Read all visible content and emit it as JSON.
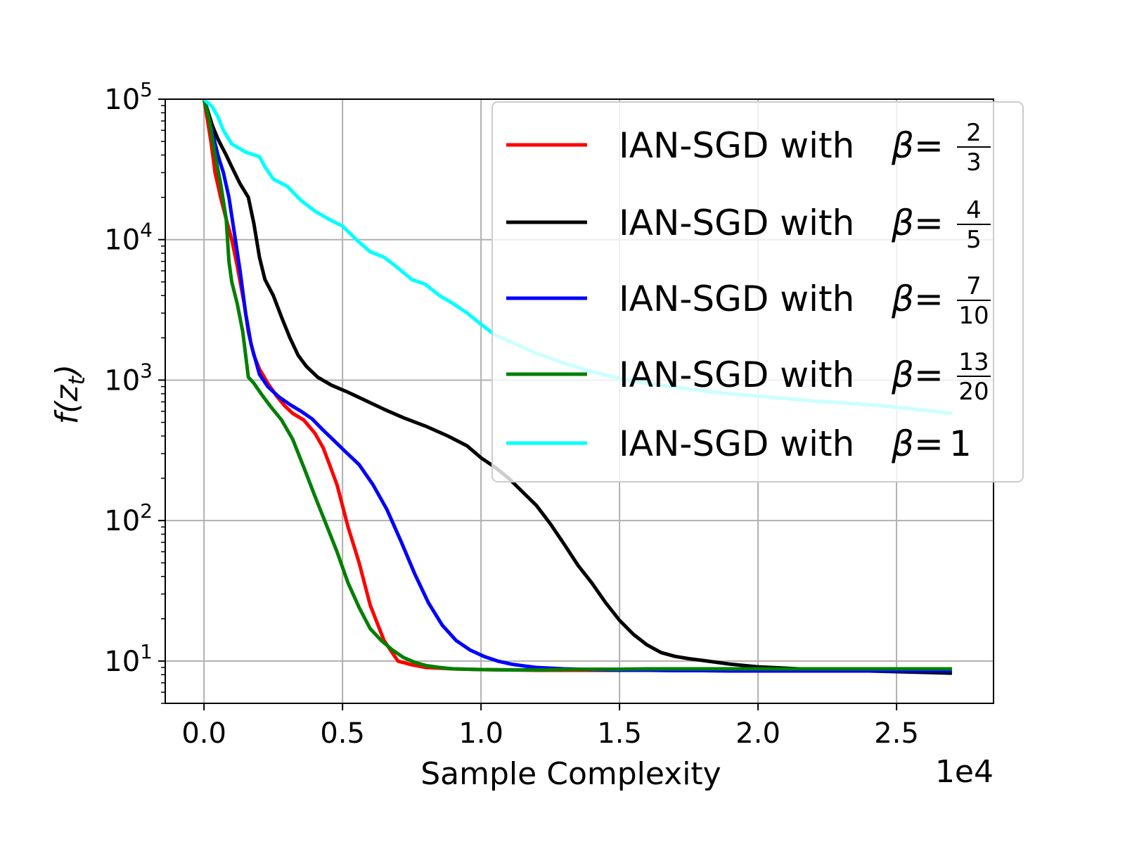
{
  "chart_data": {
    "type": "line",
    "title": "",
    "xlabel": "Sample Complexity",
    "x_offset_label": "1e4",
    "ylabel": "f(z_t)",
    "yscale": "log",
    "xlim": [
      -1400,
      28500
    ],
    "ylim": [
      5,
      100000
    ],
    "grid": true,
    "legend_location": "upper right",
    "x_ticks": [
      {
        "value": 0,
        "label": "0.0"
      },
      {
        "value": 5000,
        "label": "0.5"
      },
      {
        "value": 10000,
        "label": "1.0"
      },
      {
        "value": 15000,
        "label": "1.5"
      },
      {
        "value": 20000,
        "label": "2.0"
      },
      {
        "value": 25000,
        "label": "2.5"
      }
    ],
    "y_ticks": [
      {
        "value": 10,
        "base": "10",
        "exp": "1"
      },
      {
        "value": 100,
        "base": "10",
        "exp": "2"
      },
      {
        "value": 1000,
        "base": "10",
        "exp": "3"
      },
      {
        "value": 10000,
        "base": "10",
        "exp": "4"
      },
      {
        "value": 100000,
        "base": "10",
        "exp": "5"
      }
    ],
    "series": [
      {
        "name": "beta-2-3",
        "label_prefix": "IAN-SGD with",
        "beta_num": "2",
        "beta_den": "3",
        "color": "#ff0000",
        "x": [
          0,
          250,
          400,
          600,
          800,
          1000,
          1200,
          1450,
          1600,
          1800,
          2000,
          2300,
          2600,
          2900,
          3200,
          3600,
          4000,
          4300,
          4500,
          4800,
          5200,
          5600,
          6000,
          6500,
          7000,
          7500,
          8000,
          8500,
          9000,
          9500,
          10000,
          11000,
          12000,
          13000,
          14000,
          15000,
          16000,
          17000,
          18000,
          19000,
          20000,
          21000,
          22000,
          23000,
          24000,
          25000,
          26000,
          27000
        ],
        "y": [
          100000,
          50000,
          30000,
          20000,
          14000,
          10000,
          6500,
          3500,
          2200,
          1500,
          1200,
          950,
          780,
          660,
          580,
          520,
          420,
          330,
          260,
          180,
          90,
          50,
          25,
          14,
          10,
          9.4,
          9.0,
          8.9,
          8.8,
          8.75,
          8.7,
          8.65,
          8.6,
          8.6,
          8.6,
          8.6,
          8.65,
          8.7,
          8.7,
          8.7,
          8.75,
          8.75,
          8.75,
          8.75,
          8.8,
          8.8,
          8.8,
          8.8
        ]
      },
      {
        "name": "beta-4-5",
        "label_prefix": "IAN-SGD with",
        "beta_num": "4",
        "beta_den": "5",
        "color": "#000000",
        "x": [
          0,
          300,
          500,
          800,
          1000,
          1300,
          1600,
          1800,
          2000,
          2200,
          2500,
          2800,
          3100,
          3400,
          3700,
          4100,
          4600,
          5200,
          5800,
          6500,
          7200,
          8000,
          8800,
          9500,
          10000,
          10500,
          11000,
          11500,
          12000,
          12500,
          13000,
          13500,
          14000,
          14500,
          15000,
          15500,
          16000,
          16500,
          17000,
          17500,
          18000,
          18500,
          19000,
          19500,
          20000,
          21000,
          22000,
          23000,
          24000,
          25000,
          26000,
          27000
        ],
        "y": [
          100000,
          65000,
          52000,
          40000,
          33000,
          25000,
          20000,
          13000,
          7500,
          5200,
          4000,
          2800,
          2000,
          1500,
          1250,
          1050,
          920,
          820,
          720,
          620,
          540,
          470,
          400,
          340,
          280,
          240,
          200,
          160,
          128,
          95,
          68,
          48,
          36,
          26,
          19.5,
          15.5,
          13,
          11.5,
          10.8,
          10.4,
          10.1,
          9.8,
          9.5,
          9.3,
          9.1,
          8.9,
          8.7,
          8.6,
          8.5,
          8.4,
          8.3,
          8.2
        ]
      },
      {
        "name": "beta-7-10",
        "label_prefix": "IAN-SGD with",
        "beta_num": "7",
        "beta_den": "10",
        "color": "#0000ff",
        "x": [
          0,
          300,
          500,
          700,
          900,
          1100,
          1300,
          1500,
          1700,
          2000,
          2300,
          2700,
          3100,
          3500,
          3900,
          4300,
          4700,
          5100,
          5600,
          6100,
          6600,
          7100,
          7600,
          8100,
          8600,
          9100,
          9600,
          10100,
          10600,
          11100,
          11600,
          12000,
          13000,
          14000,
          15000,
          16000,
          17000,
          18000,
          19000,
          20000,
          21000,
          22000,
          23000,
          24000,
          25000,
          26000,
          27000
        ],
        "y": [
          100000,
          58000,
          40000,
          30000,
          20000,
          11000,
          6000,
          3000,
          1800,
          1100,
          900,
          760,
          670,
          600,
          530,
          440,
          370,
          310,
          250,
          180,
          120,
          72,
          42,
          26,
          18,
          14,
          12,
          10.8,
          10,
          9.5,
          9.2,
          9.0,
          8.8,
          8.7,
          8.6,
          8.6,
          8.55,
          8.55,
          8.5,
          8.5,
          8.5,
          8.5,
          8.5,
          8.5,
          8.5,
          8.5,
          8.5
        ]
      },
      {
        "name": "beta-13-20",
        "label_prefix": "IAN-SGD with",
        "beta_num": "13",
        "beta_den": "20",
        "color": "#008000",
        "x": [
          0,
          200,
          400,
          600,
          800,
          900,
          1000,
          1200,
          1400,
          1600,
          1800,
          2100,
          2400,
          2800,
          3200,
          3600,
          4000,
          4400,
          4800,
          5200,
          5600,
          6000,
          6400,
          6800,
          7200,
          7600,
          8000,
          8500,
          9000,
          9500,
          10000,
          11000,
          12000,
          13000,
          14000,
          15000,
          16000,
          17000,
          18000,
          19000,
          20000,
          21000,
          22000,
          23000,
          24000,
          25000,
          26000,
          27000
        ],
        "y": [
          100000,
          70000,
          40000,
          25000,
          14000,
          7000,
          5000,
          3500,
          2200,
          1050,
          950,
          780,
          650,
          520,
          380,
          240,
          150,
          95,
          60,
          36,
          24,
          17,
          14,
          12,
          10.6,
          9.8,
          9.3,
          9.0,
          8.8,
          8.75,
          8.7,
          8.65,
          8.65,
          8.7,
          8.75,
          8.75,
          8.8,
          8.8,
          8.8,
          8.8,
          8.8,
          8.8,
          8.8,
          8.8,
          8.8,
          8.8,
          8.8,
          8.8
        ]
      },
      {
        "name": "beta-1",
        "label_prefix": "IAN-SGD with",
        "beta_whole": "1",
        "color": "#00ffff",
        "x": [
          0,
          300,
          500,
          700,
          1000,
          1500,
          2000,
          2200,
          2500,
          3000,
          3500,
          4000,
          4500,
          5000,
          5500,
          6000,
          6500,
          7000,
          7500,
          8000,
          8500,
          9000,
          9500,
          10000,
          10500,
          11000,
          12000,
          13000,
          14000,
          15000,
          16000,
          17000,
          18000,
          19000,
          20000,
          21000,
          22000,
          23000,
          24000,
          25000,
          26000,
          27000
        ],
        "y": [
          100000,
          88000,
          75000,
          60000,
          48000,
          42000,
          39000,
          33000,
          27000,
          24000,
          19000,
          16000,
          14000,
          12500,
          10000,
          8200,
          7500,
          6300,
          5200,
          4800,
          4000,
          3500,
          3000,
          2500,
          2100,
          1900,
          1550,
          1320,
          1150,
          1030,
          950,
          890,
          840,
          800,
          770,
          740,
          710,
          690,
          670,
          640,
          610,
          580
        ]
      }
    ]
  }
}
